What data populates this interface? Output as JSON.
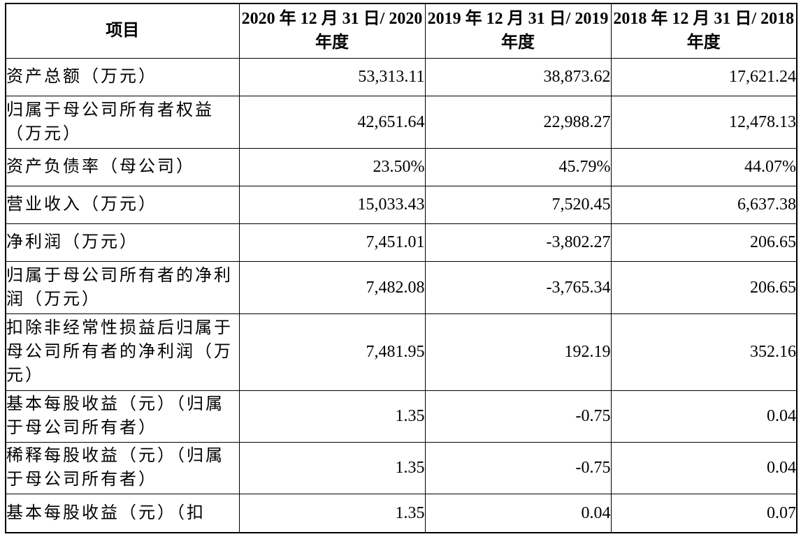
{
  "table": {
    "headers": [
      "项目",
      "2020 年 12 月 31 日/ 2020 年度",
      "2019 年 12 月 31 日/ 2019 年度",
      "2018 年 12 月 31 日/ 2018 年度"
    ],
    "rows": [
      {
        "label": "资产总额（万元）",
        "values": [
          "53,313.11",
          "38,873.62",
          "17,621.24"
        ]
      },
      {
        "label": "归属于母公司所有者权益（万元）",
        "values": [
          "42,651.64",
          "22,988.27",
          "12,478.13"
        ]
      },
      {
        "label": "资产负债率（母公司）",
        "values": [
          "23.50%",
          "45.79%",
          "44.07%"
        ]
      },
      {
        "label": "营业收入（万元）",
        "values": [
          "15,033.43",
          "7,520.45",
          "6,637.38"
        ]
      },
      {
        "label": "净利润（万元）",
        "values": [
          "7,451.01",
          "-3,802.27",
          "206.65"
        ]
      },
      {
        "label": "归属于母公司所有者的净利润（万元）",
        "values": [
          "7,482.08",
          "-3,765.34",
          "206.65"
        ]
      },
      {
        "label": "扣除非经常性损益后归属于母公司所有者的净利润（万元）",
        "values": [
          "7,481.95",
          "192.19",
          "352.16"
        ]
      },
      {
        "label": "基本每股收益（元）（归属于母公司所有者）",
        "values": [
          "1.35",
          "-0.75",
          "0.04"
        ]
      },
      {
        "label": "稀释每股收益（元）（归属于母公司所有者）",
        "values": [
          "1.35",
          "-0.75",
          "0.04"
        ]
      },
      {
        "label": "基本每股收益（元）（扣",
        "values": [
          "1.35",
          "0.04",
          "0.07"
        ]
      }
    ]
  }
}
